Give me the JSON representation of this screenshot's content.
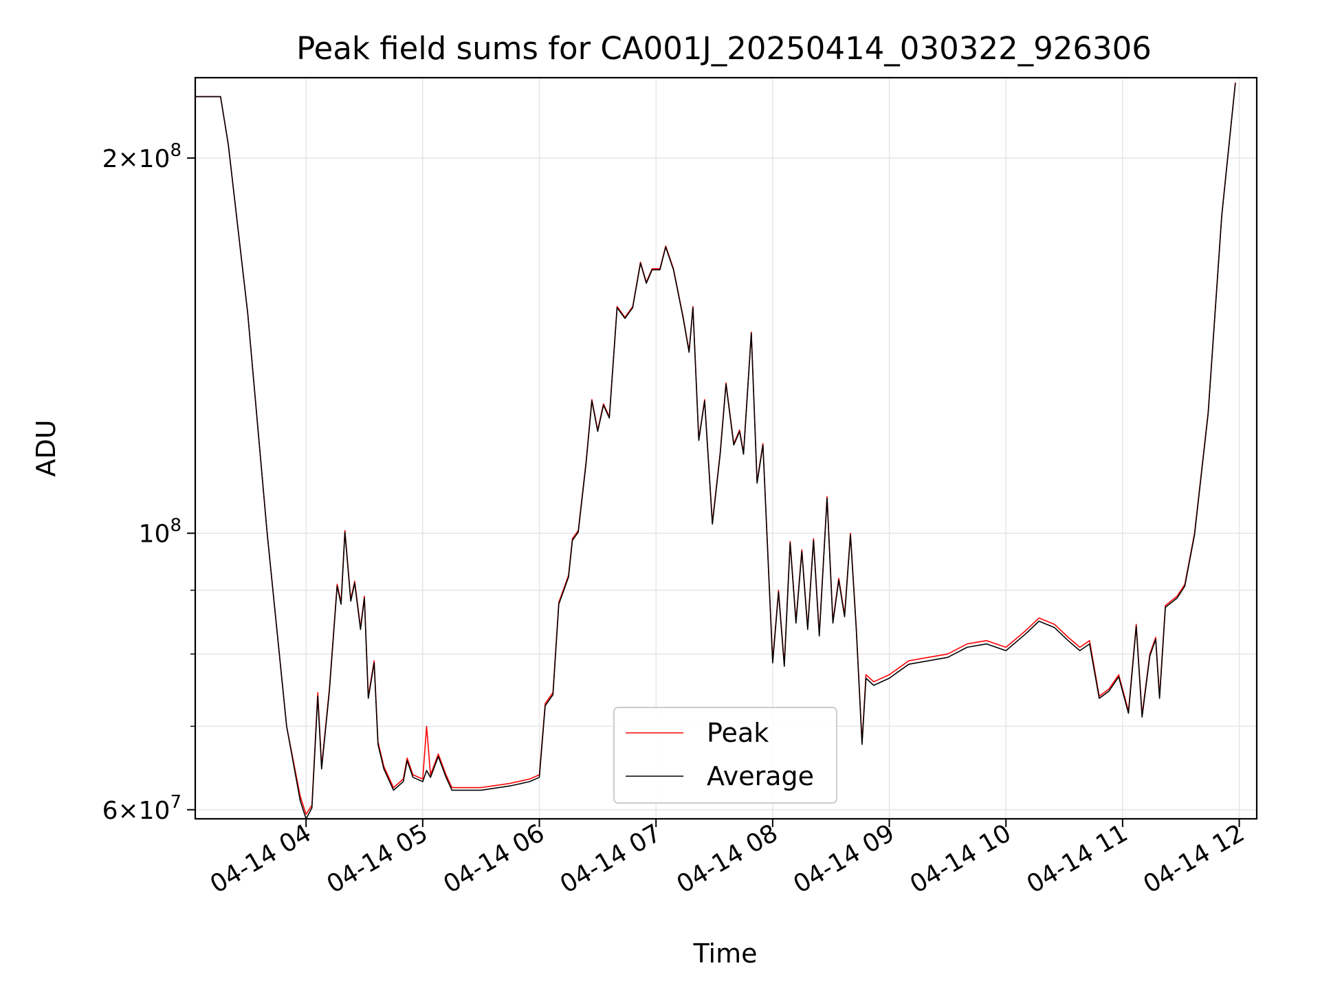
{
  "chart_data": {
    "type": "line",
    "title": "Peak field sums for CA001J_20250414_030322_926306",
    "xlabel": "Time",
    "ylabel": "ADU",
    "yscale": "log",
    "ylim": [
      59000000,
      232000000
    ],
    "xlim_hours": [
      "04-14 03:03",
      "04-14 12:09"
    ],
    "x_ticks": [
      "04-14 04",
      "04-14 05",
      "04-14 06",
      "04-14 07",
      "04-14 08",
      "04-14 09",
      "04-14 10",
      "04-14 11",
      "04-14 12"
    ],
    "y_ticks": [
      {
        "value": 60000000,
        "label": "6 × 10^7"
      },
      {
        "value": 100000000,
        "label": "10^8"
      },
      {
        "value": 200000000,
        "label": "2 × 10^8"
      }
    ],
    "grid": true,
    "legend_position": "lower center",
    "series": [
      {
        "name": "Peak",
        "color": "#ff0000",
        "points": [
          [
            "04-14 03:03",
            224000000
          ],
          [
            "04-14 03:16",
            224000000
          ],
          [
            "04-14 03:20",
            205000000
          ],
          [
            "04-14 03:30",
            150000000
          ],
          [
            "04-14 03:40",
            100000000
          ],
          [
            "04-14 03:50",
            70000000
          ],
          [
            "04-14 03:57",
            61500000
          ],
          [
            "04-14 04:00",
            59500000
          ],
          [
            "04-14 04:03",
            60500000
          ],
          [
            "04-14 04:06",
            74500000
          ],
          [
            "04-14 04:08",
            65000000
          ],
          [
            "04-14 04:12",
            75000000
          ],
          [
            "04-14 04:16",
            91000000
          ],
          [
            "04-14 04:18",
            88000000
          ],
          [
            "04-14 04:20",
            100500000
          ],
          [
            "04-14 04:23",
            88500000
          ],
          [
            "04-14 04:25",
            91500000
          ],
          [
            "04-14 04:28",
            84000000
          ],
          [
            "04-14 04:30",
            89000000
          ],
          [
            "04-14 04:32",
            74000000
          ],
          [
            "04-14 04:35",
            79000000
          ],
          [
            "04-14 04:37",
            68000000
          ],
          [
            "04-14 04:40",
            65000000
          ],
          [
            "04-14 04:45",
            62500000
          ],
          [
            "04-14 04:50",
            63500000
          ],
          [
            "04-14 04:52",
            66000000
          ],
          [
            "04-14 04:55",
            64000000
          ],
          [
            "04-14 05:00",
            63500000
          ],
          [
            "04-14 05:02",
            70000000
          ],
          [
            "04-14 05:04",
            64000000
          ],
          [
            "04-14 05:08",
            66500000
          ],
          [
            "04-14 05:12",
            64000000
          ],
          [
            "04-14 05:15",
            62500000
          ],
          [
            "04-14 05:30",
            62500000
          ],
          [
            "04-14 05:45",
            63000000
          ],
          [
            "04-14 05:55",
            63500000
          ],
          [
            "04-14 06:00",
            64000000
          ],
          [
            "04-14 06:03",
            73000000
          ],
          [
            "04-14 06:07",
            74500000
          ],
          [
            "04-14 06:10",
            88000000
          ],
          [
            "04-14 06:15",
            92500000
          ],
          [
            "04-14 06:17",
            99000000
          ],
          [
            "04-14 06:20",
            100500000
          ],
          [
            "04-14 06:24",
            114000000
          ],
          [
            "04-14 06:27",
            128000000
          ],
          [
            "04-14 06:30",
            121000000
          ],
          [
            "04-14 06:33",
            127000000
          ],
          [
            "04-14 06:36",
            124000000
          ],
          [
            "04-14 06:40",
            152000000
          ],
          [
            "04-14 06:44",
            149000000
          ],
          [
            "04-14 06:48",
            152000000
          ],
          [
            "04-14 06:52",
            165000000
          ],
          [
            "04-14 06:55",
            159000000
          ],
          [
            "04-14 06:58",
            163000000
          ],
          [
            "04-14 07:02",
            163000000
          ],
          [
            "04-14 07:05",
            170000000
          ],
          [
            "04-14 07:09",
            163000000
          ],
          [
            "04-14 07:14",
            149000000
          ],
          [
            "04-14 07:17",
            140000000
          ],
          [
            "04-14 07:19",
            152000000
          ],
          [
            "04-14 07:22",
            119000000
          ],
          [
            "04-14 07:25",
            128000000
          ],
          [
            "04-14 07:29",
            102000000
          ],
          [
            "04-14 07:33",
            116000000
          ],
          [
            "04-14 07:36",
            132000000
          ],
          [
            "04-14 07:40",
            118000000
          ],
          [
            "04-14 07:43",
            121000000
          ],
          [
            "04-14 07:45",
            116000000
          ],
          [
            "04-14 07:49",
            145000000
          ],
          [
            "04-14 07:52",
            110000000
          ],
          [
            "04-14 07:55",
            118000000
          ],
          [
            "04-14 08:00",
            79000000
          ],
          [
            "04-14 08:03",
            90000000
          ],
          [
            "04-14 08:06",
            78500000
          ],
          [
            "04-14 08:09",
            98500000
          ],
          [
            "04-14 08:12",
            85000000
          ],
          [
            "04-14 08:15",
            97000000
          ],
          [
            "04-14 08:18",
            84000000
          ],
          [
            "04-14 08:21",
            99000000
          ],
          [
            "04-14 08:24",
            83000000
          ],
          [
            "04-14 08:28",
            107000000
          ],
          [
            "04-14 08:31",
            85000000
          ],
          [
            "04-14 08:34",
            92000000
          ],
          [
            "04-14 08:37",
            86000000
          ],
          [
            "04-14 08:40",
            100000000
          ],
          [
            "04-14 08:43",
            84000000
          ],
          [
            "04-14 08:46",
            68000000
          ],
          [
            "04-14 08:48",
            77000000
          ],
          [
            "04-14 08:52",
            76000000
          ],
          [
            "04-14 09:00",
            77000000
          ],
          [
            "04-14 09:10",
            79000000
          ],
          [
            "04-14 09:20",
            79500000
          ],
          [
            "04-14 09:30",
            80000000
          ],
          [
            "04-14 09:40",
            81500000
          ],
          [
            "04-14 09:50",
            82000000
          ],
          [
            "04-14 10:00",
            81000000
          ],
          [
            "04-14 10:10",
            83500000
          ],
          [
            "04-14 10:17",
            85500000
          ],
          [
            "04-14 10:25",
            84500000
          ],
          [
            "04-14 10:32",
            82500000
          ],
          [
            "04-14 10:38",
            81000000
          ],
          [
            "04-14 10:43",
            82000000
          ],
          [
            "04-14 10:48",
            74000000
          ],
          [
            "04-14 10:53",
            75000000
          ],
          [
            "04-14 10:58",
            77000000
          ],
          [
            "04-14 11:03",
            72000000
          ],
          [
            "04-14 11:07",
            84500000
          ],
          [
            "04-14 11:10",
            71500000
          ],
          [
            "04-14 11:14",
            80000000
          ],
          [
            "04-14 11:17",
            82500000
          ],
          [
            "04-14 11:19",
            74000000
          ],
          [
            "04-14 11:22",
            87500000
          ],
          [
            "04-14 11:28",
            89000000
          ],
          [
            "04-14 11:32",
            91000000
          ],
          [
            "04-14 11:37",
            100000000
          ],
          [
            "04-14 11:44",
            125000000
          ],
          [
            "04-14 11:51",
            180000000
          ],
          [
            "04-14 11:58",
            230000000
          ]
        ]
      },
      {
        "name": "Average",
        "color": "#000000",
        "points": [
          [
            "04-14 03:03",
            224000000
          ],
          [
            "04-14 03:16",
            224000000
          ],
          [
            "04-14 03:20",
            205000000
          ],
          [
            "04-14 03:30",
            150000000
          ],
          [
            "04-14 03:40",
            100000000
          ],
          [
            "04-14 03:50",
            70000000
          ],
          [
            "04-14 03:57",
            61000000
          ],
          [
            "04-14 04:00",
            59000000
          ],
          [
            "04-14 04:03",
            60200000
          ],
          [
            "04-14 04:06",
            74000000
          ],
          [
            "04-14 04:08",
            64700000
          ],
          [
            "04-14 04:12",
            74700000
          ],
          [
            "04-14 04:16",
            90700000
          ],
          [
            "04-14 04:18",
            87700000
          ],
          [
            "04-14 04:20",
            100200000
          ],
          [
            "04-14 04:23",
            88200000
          ],
          [
            "04-14 04:25",
            91200000
          ],
          [
            "04-14 04:28",
            83700000
          ],
          [
            "04-14 04:30",
            88700000
          ],
          [
            "04-14 04:32",
            73700000
          ],
          [
            "04-14 04:35",
            78700000
          ],
          [
            "04-14 04:37",
            67700000
          ],
          [
            "04-14 04:40",
            64700000
          ],
          [
            "04-14 04:45",
            62200000
          ],
          [
            "04-14 04:50",
            63200000
          ],
          [
            "04-14 04:52",
            65700000
          ],
          [
            "04-14 04:55",
            63700000
          ],
          [
            "04-14 05:00",
            63200000
          ],
          [
            "04-14 05:02",
            64500000
          ],
          [
            "04-14 05:04",
            63700000
          ],
          [
            "04-14 05:08",
            66200000
          ],
          [
            "04-14 05:12",
            63700000
          ],
          [
            "04-14 05:15",
            62200000
          ],
          [
            "04-14 05:30",
            62200000
          ],
          [
            "04-14 05:45",
            62700000
          ],
          [
            "04-14 05:55",
            63200000
          ],
          [
            "04-14 06:00",
            63700000
          ],
          [
            "04-14 06:03",
            72700000
          ],
          [
            "04-14 06:07",
            74200000
          ],
          [
            "04-14 06:10",
            87700000
          ],
          [
            "04-14 06:15",
            92200000
          ],
          [
            "04-14 06:17",
            98700000
          ],
          [
            "04-14 06:20",
            100200000
          ],
          [
            "04-14 06:24",
            113700000
          ],
          [
            "04-14 06:27",
            127700000
          ],
          [
            "04-14 06:30",
            120700000
          ],
          [
            "04-14 06:33",
            126700000
          ],
          [
            "04-14 06:36",
            123700000
          ],
          [
            "04-14 06:40",
            151700000
          ],
          [
            "04-14 06:44",
            148700000
          ],
          [
            "04-14 06:48",
            151700000
          ],
          [
            "04-14 06:52",
            164700000
          ],
          [
            "04-14 06:55",
            158700000
          ],
          [
            "04-14 06:58",
            162700000
          ],
          [
            "04-14 07:02",
            162700000
          ],
          [
            "04-14 07:05",
            169700000
          ],
          [
            "04-14 07:09",
            162700000
          ],
          [
            "04-14 07:14",
            148700000
          ],
          [
            "04-14 07:17",
            139700000
          ],
          [
            "04-14 07:19",
            151700000
          ],
          [
            "04-14 07:22",
            118700000
          ],
          [
            "04-14 07:25",
            127700000
          ],
          [
            "04-14 07:29",
            101700000
          ],
          [
            "04-14 07:33",
            115700000
          ],
          [
            "04-14 07:36",
            131700000
          ],
          [
            "04-14 07:40",
            117700000
          ],
          [
            "04-14 07:43",
            120700000
          ],
          [
            "04-14 07:45",
            115700000
          ],
          [
            "04-14 07:49",
            144700000
          ],
          [
            "04-14 07:52",
            109700000
          ],
          [
            "04-14 07:55",
            117700000
          ],
          [
            "04-14 08:00",
            78700000
          ],
          [
            "04-14 08:03",
            89700000
          ],
          [
            "04-14 08:06",
            78200000
          ],
          [
            "04-14 08:09",
            98200000
          ],
          [
            "04-14 08:12",
            84700000
          ],
          [
            "04-14 08:15",
            96700000
          ],
          [
            "04-14 08:18",
            83700000
          ],
          [
            "04-14 08:21",
            98700000
          ],
          [
            "04-14 08:24",
            82700000
          ],
          [
            "04-14 08:28",
            106700000
          ],
          [
            "04-14 08:31",
            84700000
          ],
          [
            "04-14 08:34",
            91700000
          ],
          [
            "04-14 08:37",
            85700000
          ],
          [
            "04-14 08:40",
            99700000
          ],
          [
            "04-14 08:43",
            83700000
          ],
          [
            "04-14 08:46",
            67700000
          ],
          [
            "04-14 08:48",
            76500000
          ],
          [
            "04-14 08:52",
            75500000
          ],
          [
            "04-14 09:00",
            76500000
          ],
          [
            "04-14 09:10",
            78500000
          ],
          [
            "04-14 09:20",
            79000000
          ],
          [
            "04-14 09:30",
            79500000
          ],
          [
            "04-14 09:40",
            81000000
          ],
          [
            "04-14 09:50",
            81500000
          ],
          [
            "04-14 10:00",
            80500000
          ],
          [
            "04-14 10:10",
            83000000
          ],
          [
            "04-14 10:17",
            85000000
          ],
          [
            "04-14 10:25",
            84000000
          ],
          [
            "04-14 10:32",
            82000000
          ],
          [
            "04-14 10:38",
            80500000
          ],
          [
            "04-14 10:43",
            81500000
          ],
          [
            "04-14 10:48",
            73700000
          ],
          [
            "04-14 10:53",
            74700000
          ],
          [
            "04-14 10:58",
            76700000
          ],
          [
            "04-14 11:03",
            71700000
          ],
          [
            "04-14 11:07",
            84200000
          ],
          [
            "04-14 11:10",
            71200000
          ],
          [
            "04-14 11:14",
            79700000
          ],
          [
            "04-14 11:17",
            82200000
          ],
          [
            "04-14 11:19",
            73700000
          ],
          [
            "04-14 11:22",
            87200000
          ],
          [
            "04-14 11:28",
            88700000
          ],
          [
            "04-14 11:32",
            90700000
          ],
          [
            "04-14 11:37",
            99700000
          ],
          [
            "04-14 11:44",
            124700000
          ],
          [
            "04-14 11:51",
            179700000
          ],
          [
            "04-14 11:58",
            229700000
          ]
        ]
      }
    ]
  }
}
